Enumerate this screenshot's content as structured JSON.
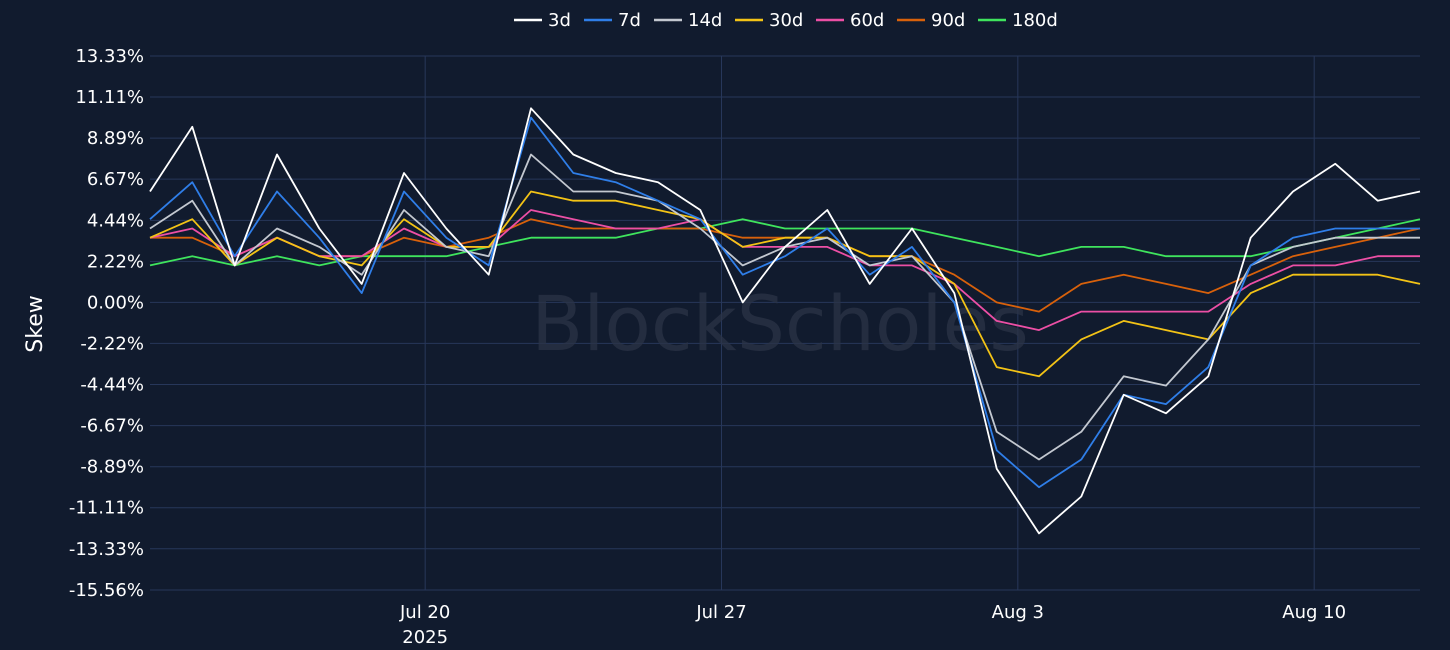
{
  "chart_data": {
    "type": "line",
    "ylabel": "Skew",
    "watermark": "BlockScholes",
    "ylim": [
      -15.56,
      13.33
    ],
    "y_ticks": [
      "13.33%",
      "11.11%",
      "8.89%",
      "6.67%",
      "4.44%",
      "2.22%",
      "0.00%",
      "-2.22%",
      "-4.44%",
      "-6.67%",
      "-8.89%",
      "-11.11%",
      "-13.33%",
      "-15.56%"
    ],
    "y_tick_values": [
      13.33,
      11.11,
      8.89,
      6.67,
      4.44,
      2.22,
      0.0,
      -2.22,
      -4.44,
      -6.67,
      -8.89,
      -11.11,
      -13.33,
      -15.56
    ],
    "x_range": [
      "2025-07-13T12:00",
      "2025-08-12T12:00"
    ],
    "x_ticks": [
      {
        "date": "2025-07-20",
        "label": "Jul 20",
        "sublabel": "2025"
      },
      {
        "date": "2025-07-27",
        "label": "Jul 27",
        "sublabel": ""
      },
      {
        "date": "2025-08-03",
        "label": "Aug 3",
        "sublabel": ""
      },
      {
        "date": "2025-08-10",
        "label": "Aug 10",
        "sublabel": ""
      }
    ],
    "grid": true,
    "legend_position": "top-center",
    "x": [
      "2025-07-13T12:00",
      "2025-07-14T12:00",
      "2025-07-15T12:00",
      "2025-07-16T12:00",
      "2025-07-17T12:00",
      "2025-07-18T12:00",
      "2025-07-19T12:00",
      "2025-07-20T12:00",
      "2025-07-21T12:00",
      "2025-07-22T12:00",
      "2025-07-23T12:00",
      "2025-07-24T12:00",
      "2025-07-25T12:00",
      "2025-07-26T12:00",
      "2025-07-27T12:00",
      "2025-07-28T12:00",
      "2025-07-29T12:00",
      "2025-07-30T12:00",
      "2025-07-31T12:00",
      "2025-08-01T12:00",
      "2025-08-02T12:00",
      "2025-08-03T12:00",
      "2025-08-04T12:00",
      "2025-08-05T12:00",
      "2025-08-06T12:00",
      "2025-08-07T12:00",
      "2025-08-08T12:00",
      "2025-08-09T12:00",
      "2025-08-10T12:00",
      "2025-08-11T12:00",
      "2025-08-12T12:00"
    ],
    "series": [
      {
        "name": "3d",
        "color": "#ffffff",
        "values": [
          6.0,
          9.5,
          2.0,
          8.0,
          4.0,
          1.0,
          7.0,
          4.0,
          1.5,
          10.5,
          8.0,
          7.0,
          6.5,
          5.0,
          0.0,
          3.0,
          5.0,
          1.0,
          4.0,
          0.5,
          -9.0,
          -12.5,
          -10.5,
          -5.0,
          -6.0,
          -4.0,
          3.5,
          6.0,
          7.5,
          5.5,
          6.0
        ]
      },
      {
        "name": "7d",
        "color": "#2f7ee8",
        "values": [
          4.5,
          6.5,
          2.5,
          6.0,
          3.5,
          0.5,
          6.0,
          3.5,
          2.0,
          10.0,
          7.0,
          6.5,
          5.5,
          4.5,
          1.5,
          2.5,
          4.0,
          1.5,
          3.0,
          0.0,
          -8.0,
          -10.0,
          -8.5,
          -5.0,
          -5.5,
          -3.5,
          2.0,
          3.5,
          4.0,
          4.0,
          4.0
        ]
      },
      {
        "name": "14d",
        "color": "#c3c8d0",
        "values": [
          4.0,
          5.5,
          2.0,
          4.0,
          3.0,
          1.5,
          5.0,
          3.0,
          2.5,
          8.0,
          6.0,
          6.0,
          5.5,
          4.0,
          2.0,
          3.0,
          3.5,
          2.0,
          2.5,
          0.0,
          -7.0,
          -8.5,
          -7.0,
          -4.0,
          -4.5,
          -2.0,
          2.0,
          3.0,
          3.5,
          3.5,
          3.5
        ]
      },
      {
        "name": "30d",
        "color": "#f3c316",
        "values": [
          3.5,
          4.5,
          2.0,
          3.5,
          2.5,
          2.0,
          4.5,
          3.0,
          3.0,
          6.0,
          5.5,
          5.5,
          5.0,
          4.5,
          3.0,
          3.5,
          3.5,
          2.5,
          2.5,
          1.0,
          -3.5,
          -4.0,
          -2.0,
          -1.0,
          -1.5,
          -2.0,
          0.5,
          1.5,
          1.5,
          1.5,
          1.0
        ]
      },
      {
        "name": "60d",
        "color": "#ec4fa5",
        "values": [
          3.5,
          4.0,
          2.5,
          3.5,
          2.5,
          2.5,
          4.0,
          3.0,
          3.0,
          5.0,
          4.5,
          4.0,
          4.0,
          4.5,
          3.0,
          3.0,
          3.0,
          2.0,
          2.0,
          1.0,
          -1.0,
          -1.5,
          -0.5,
          -0.5,
          -0.5,
          -0.5,
          1.0,
          2.0,
          2.0,
          2.5,
          2.5
        ]
      },
      {
        "name": "90d",
        "color": "#d8610b",
        "values": [
          3.5,
          3.5,
          2.5,
          3.5,
          2.5,
          2.5,
          3.5,
          3.0,
          3.5,
          4.5,
          4.0,
          4.0,
          4.0,
          4.0,
          3.5,
          3.5,
          3.5,
          2.5,
          2.5,
          1.5,
          0.0,
          -0.5,
          1.0,
          1.5,
          1.0,
          0.5,
          1.5,
          2.5,
          3.0,
          3.5,
          4.0
        ]
      },
      {
        "name": "180d",
        "color": "#3fe45d",
        "values": [
          2.0,
          2.5,
          2.0,
          2.5,
          2.0,
          2.5,
          2.5,
          2.5,
          3.0,
          3.5,
          3.5,
          3.5,
          4.0,
          4.0,
          4.5,
          4.0,
          4.0,
          4.0,
          4.0,
          3.5,
          3.0,
          2.5,
          3.0,
          3.0,
          2.5,
          2.5,
          2.5,
          3.0,
          3.5,
          4.0,
          4.5
        ]
      }
    ]
  }
}
